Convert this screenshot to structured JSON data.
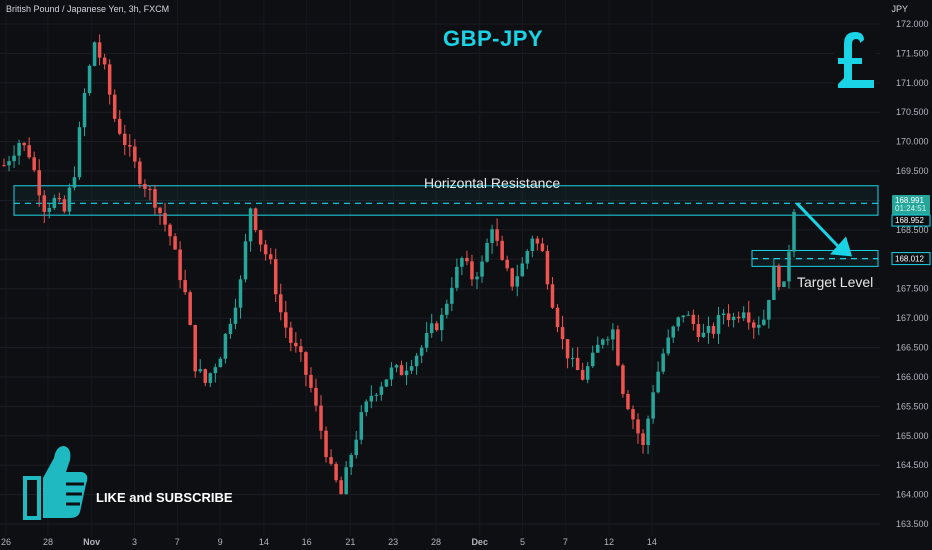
{
  "header": {
    "symbol": "British Pound / Japanese Yen, 3h, FXCM",
    "currency": "JPY",
    "title": "GBP-JPY"
  },
  "annotations": {
    "resistance_label": "Horizontal Resistance",
    "target_label": "Target Level",
    "cta": "LIKE and SUBSCRIBE"
  },
  "price_tags": {
    "last": "168.991",
    "countdown": "01:24:51",
    "zone": "168.952",
    "target": "168.012"
  },
  "colors": {
    "up": "#26a69a",
    "down": "#ef5350",
    "accent": "#1ad3e5",
    "background": "#0e0f13"
  },
  "icons": [
    "pound-icon",
    "thumbs-up-icon"
  ],
  "chart_data": {
    "type": "candlestick",
    "title": "GBP-JPY",
    "ylabel": "JPY",
    "ylim": [
      163.3,
      172.2
    ],
    "y_ticks": [
      "163.500",
      "164.000",
      "164.500",
      "165.000",
      "165.500",
      "166.000",
      "166.500",
      "167.000",
      "167.500",
      "168.000",
      "168.500",
      "169.000",
      "169.500",
      "170.000",
      "170.500",
      "171.000",
      "171.500",
      "172.000"
    ],
    "x_ticks": [
      {
        "label": "26",
        "pos": 0.0
      },
      {
        "label": "28",
        "pos": 0.048
      },
      {
        "label": "Nov",
        "pos": 0.098
      },
      {
        "label": "3",
        "pos": 0.147
      },
      {
        "label": "7",
        "pos": 0.196
      },
      {
        "label": "9",
        "pos": 0.245
      },
      {
        "label": "14",
        "pos": 0.295
      },
      {
        "label": "16",
        "pos": 0.344
      },
      {
        "label": "21",
        "pos": 0.394
      },
      {
        "label": "23",
        "pos": 0.443
      },
      {
        "label": "28",
        "pos": 0.492
      },
      {
        "label": "Dec",
        "pos": 0.542
      },
      {
        "label": "5",
        "pos": 0.591
      },
      {
        "label": "7",
        "pos": 0.64
      },
      {
        "label": "12",
        "pos": 0.69
      },
      {
        "label": "14",
        "pos": 0.739
      }
    ],
    "price_path": [
      [
        0,
        169.6
      ],
      [
        3,
        170.0
      ],
      [
        5,
        169.8
      ],
      [
        8,
        168.9
      ],
      [
        10,
        169.0
      ],
      [
        12,
        168.8
      ],
      [
        14,
        169.5
      ],
      [
        16,
        170.8
      ],
      [
        18,
        171.7
      ],
      [
        20,
        171.2
      ],
      [
        22,
        170.4
      ],
      [
        24,
        170.0
      ],
      [
        27,
        169.4
      ],
      [
        30,
        169.0
      ],
      [
        33,
        168.4
      ],
      [
        36,
        167.4
      ],
      [
        38,
        166.2
      ],
      [
        40,
        165.9
      ],
      [
        43,
        166.4
      ],
      [
        45,
        167.0
      ],
      [
        47,
        167.6
      ],
      [
        49,
        168.9
      ],
      [
        51,
        168.3
      ],
      [
        53,
        167.9
      ],
      [
        55,
        167.1
      ],
      [
        57,
        166.6
      ],
      [
        59,
        166.3
      ],
      [
        61,
        165.8
      ],
      [
        63,
        165.1
      ],
      [
        65,
        164.4
      ],
      [
        67,
        164.0
      ],
      [
        69,
        164.7
      ],
      [
        71,
        165.3
      ],
      [
        73,
        165.7
      ],
      [
        75,
        165.9
      ],
      [
        77,
        166.1
      ],
      [
        79,
        166.1
      ],
      [
        81,
        166.3
      ],
      [
        83,
        166.5
      ],
      [
        85,
        166.8
      ],
      [
        87,
        167.0
      ],
      [
        89,
        167.6
      ],
      [
        91,
        168.0
      ],
      [
        93,
        167.7
      ],
      [
        95,
        167.9
      ],
      [
        97,
        168.6
      ],
      [
        99,
        167.9
      ],
      [
        101,
        167.6
      ],
      [
        103,
        167.9
      ],
      [
        105,
        168.4
      ],
      [
        107,
        168.1
      ],
      [
        109,
        167.3
      ],
      [
        111,
        166.6
      ],
      [
        113,
        166.2
      ],
      [
        115,
        166.0
      ],
      [
        117,
        166.3
      ],
      [
        119,
        166.7
      ],
      [
        121,
        166.8
      ],
      [
        123,
        165.8
      ],
      [
        125,
        165.3
      ],
      [
        127,
        164.8
      ],
      [
        129,
        165.8
      ],
      [
        131,
        166.4
      ],
      [
        133,
        166.8
      ],
      [
        135,
        167.1
      ],
      [
        137,
        166.9
      ],
      [
        139,
        166.7
      ],
      [
        141,
        166.8
      ],
      [
        143,
        167.1
      ],
      [
        145,
        167.0
      ],
      [
        147,
        167.2
      ],
      [
        149,
        166.9
      ],
      [
        151,
        167.0
      ],
      [
        153,
        167.8
      ],
      [
        155,
        167.5
      ],
      [
        156,
        168.2
      ],
      [
        157,
        168.9
      ]
    ],
    "horizontal_lines": [
      {
        "name": "Horizontal Resistance",
        "value": 168.952,
        "zone": [
          168.75,
          169.25
        ]
      },
      {
        "name": "Target Level",
        "value": 168.012,
        "zone": [
          167.88,
          168.15
        ]
      }
    ]
  }
}
